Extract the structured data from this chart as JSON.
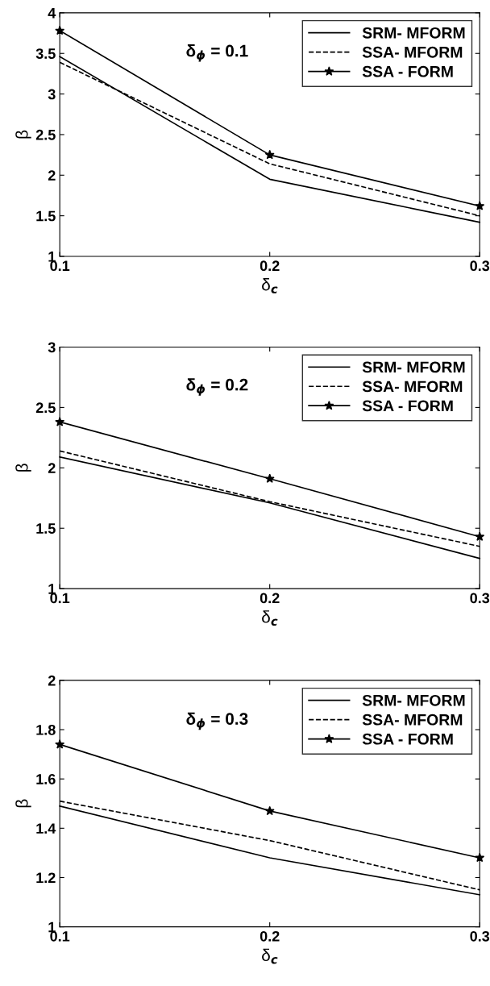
{
  "chart_data": [
    {
      "type": "line",
      "x": [
        0.1,
        0.2,
        0.3
      ],
      "xlabel": "δ$_{c}$",
      "ylabel": "β",
      "xlim": [
        0.1,
        0.3
      ],
      "xticks": [
        0.1,
        0.2,
        0.3
      ],
      "ylim": [
        1,
        4
      ],
      "yticks": [
        1,
        1.5,
        2,
        2.5,
        3,
        3.5,
        4
      ],
      "legend": "top right",
      "grid": false,
      "annotations": [
        "δ$_{ϕ}$ = 0.1"
      ],
      "series": [
        {
          "name": "SRM- MFORM",
          "color": "#000000",
          "values": [
            3.46,
            1.95,
            1.42
          ],
          "line_style": "solid",
          "marker": "none"
        },
        {
          "name": "SSA- MFORM",
          "color": "#000000",
          "values": [
            3.39,
            2.14,
            1.5
          ],
          "line_style": "dashed",
          "marker": "none"
        },
        {
          "name": "SSA - FORM",
          "color": "#000000",
          "values": [
            3.78,
            2.25,
            1.62
          ],
          "line_style": "solid",
          "marker": "star"
        }
      ]
    },
    {
      "type": "line",
      "x": [
        0.1,
        0.2,
        0.3
      ],
      "xlabel": "δ$_{c}$",
      "ylabel": "β",
      "xlim": [
        0.1,
        0.3
      ],
      "xticks": [
        0.1,
        0.2,
        0.3
      ],
      "ylim": [
        1,
        3
      ],
      "yticks": [
        1,
        1.5,
        2,
        2.5,
        3
      ],
      "legend": "top right",
      "grid": false,
      "annotations": [
        "δ$_{ϕ}$ = 0.2"
      ],
      "series": [
        {
          "name": "SRM- MFORM",
          "color": "#000000",
          "values": [
            2.09,
            1.71,
            1.25
          ],
          "line_style": "solid",
          "marker": "none"
        },
        {
          "name": "SSA- MFORM",
          "color": "#000000",
          "values": [
            2.14,
            1.72,
            1.35
          ],
          "line_style": "dashed",
          "marker": "none"
        },
        {
          "name": "SSA - FORM",
          "color": "#000000",
          "values": [
            2.38,
            1.91,
            1.43
          ],
          "line_style": "solid",
          "marker": "star"
        }
      ]
    },
    {
      "type": "line",
      "x": [
        0.1,
        0.2,
        0.3
      ],
      "xlabel": "δ$_{c}$",
      "ylabel": "β",
      "xlim": [
        0.1,
        0.3
      ],
      "xticks": [
        0.1,
        0.2,
        0.3
      ],
      "ylim": [
        1,
        2
      ],
      "yticks": [
        1,
        1.2,
        1.4,
        1.6,
        1.8,
        2
      ],
      "legend": "top right",
      "grid": false,
      "annotations": [
        "δ$_{ϕ}$ = 0.3"
      ],
      "series": [
        {
          "name": "SRM- MFORM",
          "color": "#000000",
          "values": [
            1.49,
            1.28,
            1.13
          ],
          "line_style": "solid",
          "marker": "none"
        },
        {
          "name": "SSA- MFORM",
          "color": "#000000",
          "values": [
            1.51,
            1.35,
            1.15
          ],
          "line_style": "dashed",
          "marker": "none"
        },
        {
          "name": "SSA - FORM",
          "color": "#000000",
          "values": [
            1.74,
            1.47,
            1.28
          ],
          "line_style": "solid",
          "marker": "star"
        }
      ]
    }
  ]
}
